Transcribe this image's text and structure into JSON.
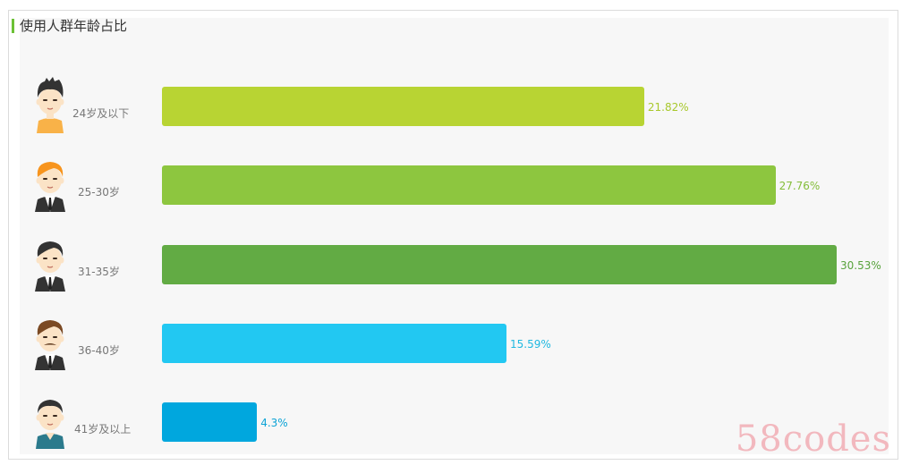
{
  "title": "使用人群年龄占比",
  "watermark": "58codes",
  "chart_data": {
    "type": "bar",
    "orientation": "horizontal",
    "title": "使用人群年龄占比",
    "categories": [
      "24岁及以下",
      "25-30岁",
      "31-35岁",
      "36-40岁",
      "41岁及以上"
    ],
    "values": [
      21.82,
      27.76,
      30.53,
      15.59,
      4.3
    ],
    "value_labels": [
      "21.82%",
      "27.76%",
      "30.53%",
      "15.59%",
      "4.3%"
    ],
    "unit": "%",
    "xlim": [
      0,
      30.53
    ],
    "grid": false,
    "legend": "none",
    "colors": [
      "#b8d433",
      "#8dc63f",
      "#62ab44",
      "#22c8f2",
      "#00a7de"
    ],
    "label_colors": [
      "#a8c82c",
      "#84bd3a",
      "#58a23c",
      "#20b8e0",
      "#0da3d6"
    ],
    "avatars": [
      {
        "icon": "young-boy-icon",
        "hair": "#333333",
        "shirt": "#f9b248"
      },
      {
        "icon": "ginger-man-suit-icon",
        "hair": "#f7941d",
        "shirt": "#333333"
      },
      {
        "icon": "businessman-icon",
        "hair": "#333333",
        "shirt": "#333333"
      },
      {
        "icon": "mustache-man-icon",
        "hair": "#7b4a24",
        "shirt": "#333333"
      },
      {
        "icon": "older-man-icon",
        "hair": "#333333",
        "shirt": "#2b7a8c"
      }
    ]
  }
}
